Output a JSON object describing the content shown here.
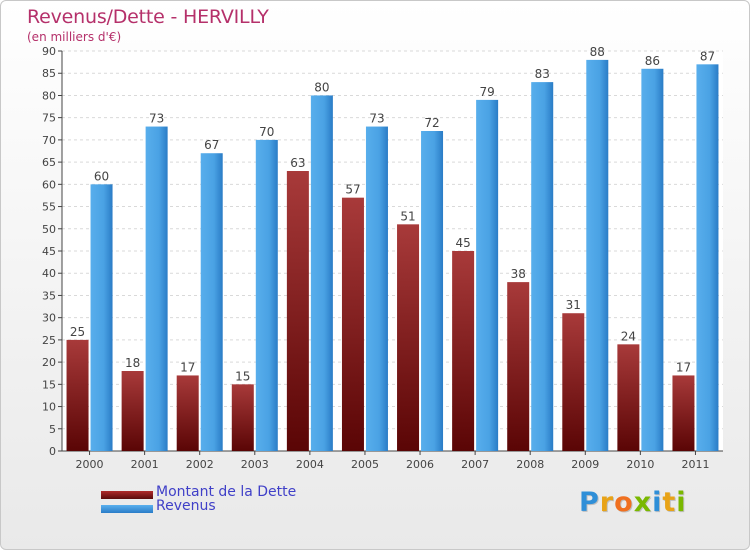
{
  "title": "Revenus/Dette - HERVILLY",
  "subtitle": "(en milliers d'€)",
  "logo": "Proxiti",
  "colors": {
    "dette": "#8b1a1a",
    "revenus": "#3f9be0",
    "title": "#b5306a",
    "legend_text": "#4040c8"
  },
  "chart_data": {
    "type": "bar",
    "categories": [
      "2000",
      "2001",
      "2002",
      "2003",
      "2004",
      "2005",
      "2006",
      "2007",
      "2008",
      "2009",
      "2010",
      "2011"
    ],
    "series": [
      {
        "name": "Montant de la Dette",
        "values": [
          25,
          18,
          17,
          15,
          63,
          57,
          51,
          45,
          38,
          31,
          24,
          17
        ]
      },
      {
        "name": "Revenus",
        "values": [
          60,
          73,
          67,
          70,
          80,
          73,
          72,
          79,
          83,
          88,
          86,
          87
        ]
      }
    ],
    "ylim": [
      0,
      90
    ],
    "yticks": [
      0,
      5,
      10,
      15,
      20,
      25,
      30,
      35,
      40,
      45,
      50,
      55,
      60,
      65,
      70,
      75,
      80,
      85,
      90
    ],
    "grid": true,
    "legend_position": "bottom-left"
  }
}
